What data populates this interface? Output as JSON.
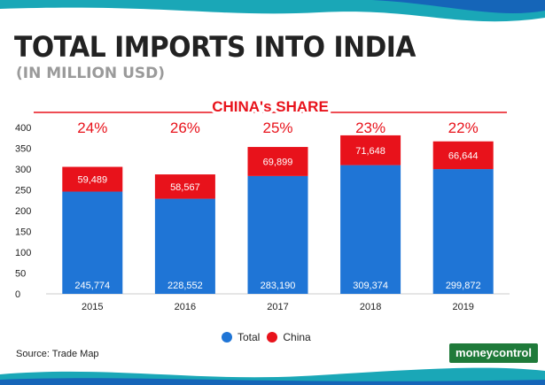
{
  "header": {
    "title": "TOTAL IMPORTS INTO INDIA",
    "subtitle": "(IN MILLION USD)"
  },
  "colors": {
    "total": "#1f75d6",
    "china": "#e8121b",
    "share_text": "#e8121b",
    "wave_teal": "#1aa7b7",
    "wave_blue": "#1565b8",
    "brand_green": "#1f7a3a"
  },
  "chart_data": {
    "type": "bar",
    "stacked": true,
    "categories": [
      "2015",
      "2016",
      "2017",
      "2018",
      "2019"
    ],
    "series": [
      {
        "name": "Total",
        "values": [
          245774,
          228552,
          283190,
          309374,
          299872
        ]
      },
      {
        "name": "China",
        "values": [
          59489,
          58567,
          69899,
          71648,
          66644
        ]
      }
    ],
    "value_labels": {
      "Total": [
        "245,774",
        "228,552",
        "283,190",
        "309,374",
        "299,872"
      ],
      "China": [
        "59,489",
        "58,567",
        "69,899",
        "71,648",
        "66,644"
      ]
    },
    "annotation_title": "CHINA's SHARE",
    "share_labels": [
      "24%",
      "26%",
      "25%",
      "23%",
      "22%"
    ],
    "yticks": [
      "0",
      "50",
      "100",
      "150",
      "200",
      "250",
      "300",
      "350",
      "400"
    ],
    "ylim": [
      0,
      400
    ],
    "y_scale": 1000,
    "legend_position": "bottom",
    "grid": false
  },
  "footer": {
    "source": "Source: Trade Map",
    "brand": "moneycontrol"
  }
}
